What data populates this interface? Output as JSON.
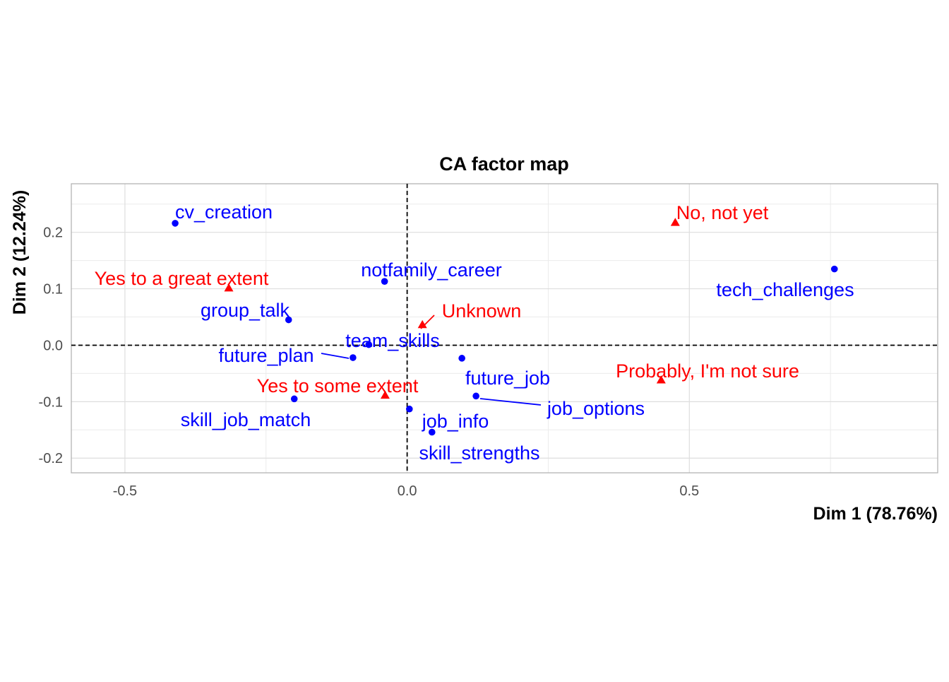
{
  "chart_data": {
    "type": "scatter",
    "title": "CA factor map",
    "xlabel": "Dim 1 (78.76%)",
    "ylabel": "Dim 2 (12.24%)",
    "xlim": [
      -0.595,
      0.94
    ],
    "ylim": [
      -0.226,
      0.286
    ],
    "xticks": [
      -0.5,
      0.0,
      0.5
    ],
    "xtick_labels": [
      "-0.5",
      "0.0",
      "0.5"
    ],
    "yticks": [
      -0.2,
      -0.1,
      0.0,
      0.1,
      0.2
    ],
    "ytick_labels": [
      "-0.2",
      "-0.1",
      "0.0",
      "0.1",
      "0.2"
    ],
    "grid": true,
    "reference_lines": {
      "x": 0,
      "y": 0,
      "style": "dashed"
    },
    "colors": {
      "column": "#0000ff",
      "row": "#ff0000"
    },
    "series": [
      {
        "name": "columns",
        "marker": "circle",
        "color": "#0000ff",
        "points": [
          {
            "label": "cv_creation",
            "x": -0.411,
            "y": 0.216
          },
          {
            "label": "notfamily_career",
            "x": -0.04,
            "y": 0.113
          },
          {
            "label": "tech_challenges",
            "x": 0.757,
            "y": 0.135
          },
          {
            "label": "group_talk",
            "x": -0.21,
            "y": 0.045
          },
          {
            "label": "team_skills",
            "x": -0.068,
            "y": 0.001
          },
          {
            "label": "future_plan",
            "x": -0.096,
            "y": -0.022
          },
          {
            "label": "future_job",
            "x": 0.097,
            "y": -0.023
          },
          {
            "label": "job_options",
            "x": 0.122,
            "y": -0.09
          },
          {
            "label": "skill_job_match",
            "x": -0.2,
            "y": -0.095
          },
          {
            "label": "job_info",
            "x": 0.004,
            "y": -0.113
          },
          {
            "label": "skill_strengths",
            "x": 0.044,
            "y": -0.154
          }
        ]
      },
      {
        "name": "rows",
        "marker": "triangle",
        "color": "#ff0000",
        "points": [
          {
            "label": "No, not yet",
            "x": 0.475,
            "y": 0.217
          },
          {
            "label": "Yes to a great extent",
            "x": -0.316,
            "y": 0.101
          },
          {
            "label": "Unknown",
            "x": 0.027,
            "y": 0.036
          },
          {
            "label": "Probably, I'm not sure",
            "x": 0.45,
            "y": -0.062
          },
          {
            "label": "Yes to some extent",
            "x": -0.039,
            "y": -0.089
          }
        ]
      }
    ]
  }
}
